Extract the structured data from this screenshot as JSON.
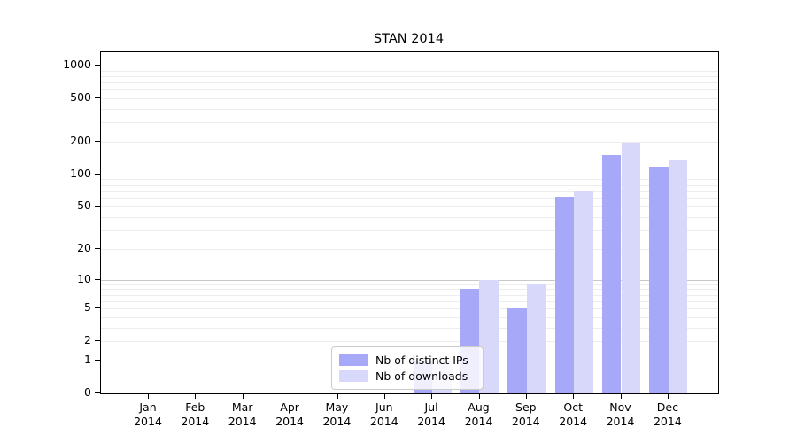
{
  "title": "STAN 2014",
  "chart_data": {
    "type": "bar",
    "title": "STAN 2014",
    "categories": [
      "Jan",
      "Feb",
      "Mar",
      "Apr",
      "May",
      "Jun",
      "Jul",
      "Aug",
      "Sep",
      "Oct",
      "Nov",
      "Dec"
    ],
    "year_label": "2014",
    "series": [
      {
        "name": "Nb of distinct IPs",
        "color": "#a8a8f8",
        "values": [
          0,
          0,
          0,
          0,
          0,
          0,
          1,
          8,
          5,
          62,
          150,
          118
        ]
      },
      {
        "name": "Nb of downloads",
        "color": "#d8d8fa",
        "values": [
          0,
          0,
          0,
          0,
          0,
          0,
          1,
          10,
          9,
          70,
          195,
          135
        ]
      }
    ],
    "xlabel": "",
    "ylabel": "",
    "yscale": "log1p",
    "y_ticks": [
      0,
      1,
      2,
      5,
      10,
      20,
      50,
      100,
      200,
      500,
      1000
    ],
    "ylim": [
      0,
      1320
    ],
    "grid": "horizontal minor gridlines at 1-9 steps of each decade, darker at powers of 10",
    "legend_position": "inside plot, lower middle",
    "bar_layout": "paired bars centered on month tick, distinct-IPs left, downloads right"
  },
  "colors": {
    "bar_distinct_ips": "#a8a8f8",
    "bar_downloads": "#d8d8fa",
    "grid_minor": "#ededed",
    "grid_major": "#c9c9c9",
    "frame": "#000000",
    "legend_border": "#cbcbcb"
  }
}
